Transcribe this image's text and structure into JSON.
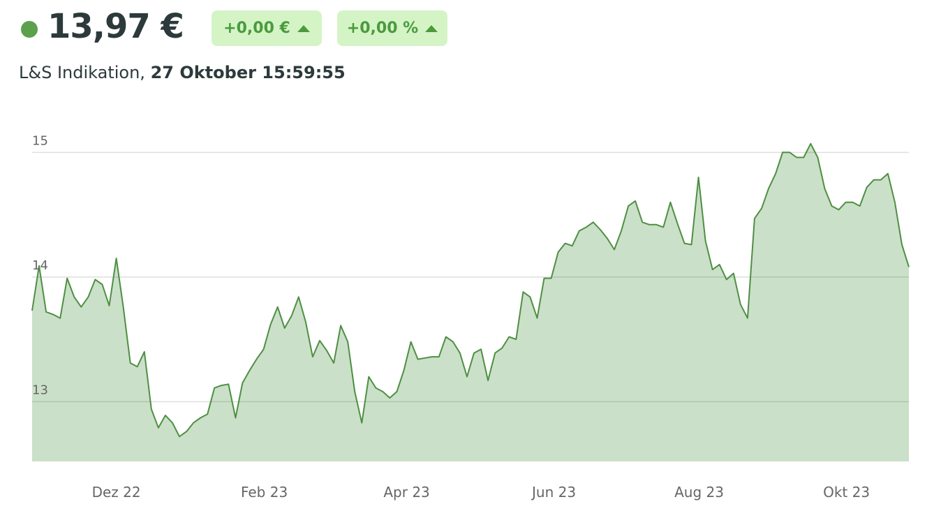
{
  "header": {
    "price": "13,97 €",
    "change": "+0,00 €",
    "change_pct": "+0,00 %",
    "source": "L&S Indikation,",
    "timestamp": "27 Oktober 15:59:55"
  },
  "chart_data": {
    "type": "area",
    "color": "#4e8f43",
    "fill": "#cbe0c8",
    "grid": true,
    "values": [
      13.73,
      14.09,
      13.72,
      13.7,
      13.67,
      13.99,
      13.84,
      13.76,
      13.84,
      13.98,
      13.94,
      13.77,
      14.15,
      13.76,
      13.31,
      13.28,
      13.4,
      12.94,
      12.79,
      12.89,
      12.83,
      12.72,
      12.76,
      12.83,
      12.87,
      12.9,
      13.11,
      13.13,
      13.14,
      12.87,
      13.15,
      13.25,
      13.34,
      13.42,
      13.62,
      13.76,
      13.59,
      13.69,
      13.84,
      13.64,
      13.36,
      13.49,
      13.41,
      13.31,
      13.61,
      13.48,
      13.08,
      12.83,
      13.2,
      13.11,
      13.08,
      13.03,
      13.08,
      13.25,
      13.48,
      13.34,
      13.35,
      13.36,
      13.36,
      13.52,
      13.48,
      13.39,
      13.2,
      13.39,
      13.42,
      13.17,
      13.39,
      13.43,
      13.52,
      13.5,
      13.88,
      13.84,
      13.67,
      13.99,
      13.99,
      14.2,
      14.27,
      14.25,
      14.37,
      14.4,
      14.44,
      14.38,
      14.31,
      14.22,
      14.37,
      14.57,
      14.61,
      14.44,
      14.42,
      14.42,
      14.4,
      14.6,
      14.43,
      14.27,
      14.26,
      14.8,
      14.29,
      14.06,
      14.1,
      13.98,
      14.03,
      13.78,
      13.67,
      14.47,
      14.55,
      14.71,
      14.83,
      15.0,
      15.0,
      14.96,
      14.96,
      15.07,
      14.96,
      14.71,
      14.57,
      14.54,
      14.6,
      14.6,
      14.57,
      14.72,
      14.78,
      14.78,
      14.83,
      14.6,
      14.26,
      14.08
    ],
    "xlim": [
      0,
      125
    ],
    "xticks": [
      {
        "value": 12,
        "label": "Dez 22"
      },
      {
        "value": 33.1,
        "label": "Feb 23"
      },
      {
        "value": 53.4,
        "label": "Apr 23"
      },
      {
        "value": 74.4,
        "label": "Jun 23"
      },
      {
        "value": 95.1,
        "label": "Aug 23"
      },
      {
        "value": 116.1,
        "label": "Okt 23"
      }
    ],
    "ylim": [
      12.52,
      15.4
    ],
    "yticks": [
      13,
      14,
      15
    ]
  }
}
